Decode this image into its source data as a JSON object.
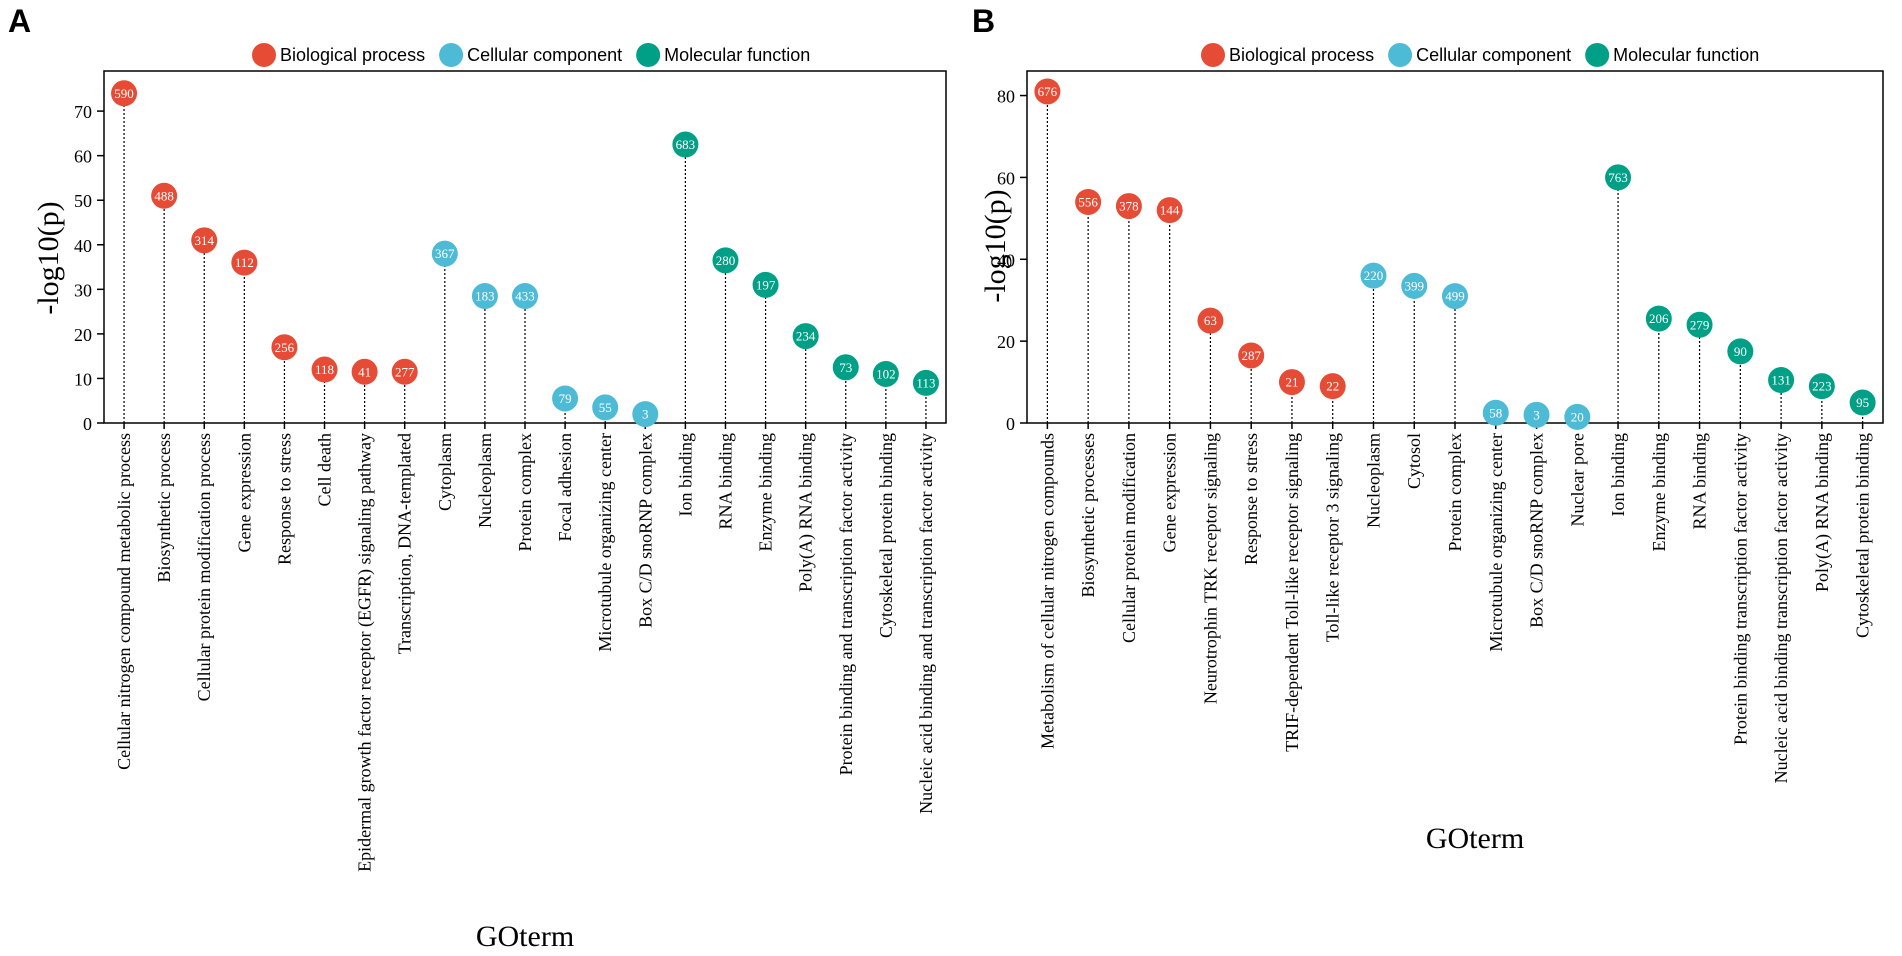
{
  "colors": {
    "Biological process": "#e64b35",
    "Cellular component": "#4dbbd5",
    "Molecular function": "#00a087"
  },
  "chart_data": [
    {
      "type": "scatter",
      "panel": "A",
      "xlabel": "GOterm",
      "ylabel": "-log10(p)",
      "ylim": [
        0,
        79
      ],
      "yticks": [
        0,
        10,
        20,
        30,
        40,
        50,
        60,
        70
      ],
      "legend": [
        "Biological process",
        "Cellular component",
        "Molecular function"
      ],
      "points": [
        {
          "term": "Cellular nitrogen compound metabolic process",
          "category": "Biological process",
          "value": 74,
          "count": "590"
        },
        {
          "term": "Biosynthetic process",
          "category": "Biological process",
          "value": 51,
          "count": "488"
        },
        {
          "term": "Cellular protein modification process",
          "category": "Biological process",
          "value": 41,
          "count": "314"
        },
        {
          "term": "Gene expression",
          "category": "Biological process",
          "value": 36,
          "count": "112"
        },
        {
          "term": "Response to stress",
          "category": "Biological process",
          "value": 17,
          "count": "256"
        },
        {
          "term": "Cell death",
          "category": "Biological process",
          "value": 12,
          "count": "118"
        },
        {
          "term": "Epidermal growth factor receptor (EGFR) signaling pathway",
          "category": "Biological process",
          "value": 11.5,
          "count": "41"
        },
        {
          "term": "Transcription, DNA-templated",
          "category": "Biological process",
          "value": 11.5,
          "count": "277"
        },
        {
          "term": "Cytoplasm",
          "category": "Cellular component",
          "value": 38,
          "count": "367"
        },
        {
          "term": "Nucleoplasm",
          "category": "Cellular component",
          "value": 28.5,
          "count": "183"
        },
        {
          "term": "Protein complex",
          "category": "Cellular component",
          "value": 28.5,
          "count": "433"
        },
        {
          "term": "Focal adhesion",
          "category": "Cellular component",
          "value": 5.5,
          "count": "79"
        },
        {
          "term": "Microtubule organizing center",
          "category": "Cellular component",
          "value": 3.5,
          "count": "55"
        },
        {
          "term": "Box C/D snoRNP complex",
          "category": "Cellular component",
          "value": 2,
          "count": "3"
        },
        {
          "term": "Ion binding",
          "category": "Molecular function",
          "value": 62.5,
          "count": "683"
        },
        {
          "term": "RNA binding",
          "category": "Molecular function",
          "value": 36.5,
          "count": "280"
        },
        {
          "term": "Enzyme binding",
          "category": "Molecular function",
          "value": 31,
          "count": "197"
        },
        {
          "term": "Poly(A) RNA binding",
          "category": "Molecular function",
          "value": 19.5,
          "count": "234"
        },
        {
          "term": "Protein binding and transcription factor activity",
          "category": "Molecular function",
          "value": 12.5,
          "count": "73"
        },
        {
          "term": "Cytoskeletal protein binding",
          "category": "Molecular function",
          "value": 11,
          "count": "102"
        },
        {
          "term": "Nucleic acid binding and transcription factor activity",
          "category": "Molecular function",
          "value": 9,
          "count": "113"
        }
      ]
    },
    {
      "type": "scatter",
      "panel": "B",
      "xlabel": "GOterm",
      "ylabel": "-log10(p)",
      "ylim": [
        0,
        86
      ],
      "yticks": [
        0,
        20,
        40,
        60,
        80
      ],
      "legend": [
        "Biological process",
        "Cellular component",
        "Molecular function"
      ],
      "points": [
        {
          "term": "Metabolism of cellular nitrogen compounds",
          "category": "Biological process",
          "value": 81,
          "count": "676"
        },
        {
          "term": "Biosynthetic processes",
          "category": "Biological process",
          "value": 54,
          "count": "556"
        },
        {
          "term": "Cellular protein modification",
          "category": "Biological process",
          "value": 53,
          "count": "378"
        },
        {
          "term": "Gene expression",
          "category": "Biological process",
          "value": 52,
          "count": "144"
        },
        {
          "term": "Neurotrophin TRK receptor signaling",
          "category": "Biological process",
          "value": 25,
          "count": "63"
        },
        {
          "term": "Response to stress",
          "category": "Biological process",
          "value": 16.5,
          "count": "287"
        },
        {
          "term": "TRIF-dependent Toll-like receptor signaling",
          "category": "Biological process",
          "value": 10,
          "count": "21"
        },
        {
          "term": "Toll-like receptor 3 signaling",
          "category": "Biological process",
          "value": 9,
          "count": "22"
        },
        {
          "term": "Nucleoplasm",
          "category": "Cellular component",
          "value": 36,
          "count": "220"
        },
        {
          "term": "Cytosol",
          "category": "Cellular component",
          "value": 33.5,
          "count": "399"
        },
        {
          "term": "Protein complex",
          "category": "Cellular component",
          "value": 31,
          "count": "499"
        },
        {
          "term": "Microtubule organizing center",
          "category": "Cellular component",
          "value": 2.5,
          "count": "58"
        },
        {
          "term": "Box C/D snoRNP complex",
          "category": "Cellular component",
          "value": 2,
          "count": "3"
        },
        {
          "term": "Nuclear pore",
          "category": "Cellular component",
          "value": 1.5,
          "count": "20"
        },
        {
          "term": "Ion binding",
          "category": "Molecular function",
          "value": 60,
          "count": "763"
        },
        {
          "term": "Enzyme binding",
          "category": "Molecular function",
          "value": 25.5,
          "count": "206"
        },
        {
          "term": "RNA binding",
          "category": "Molecular function",
          "value": 24,
          "count": "279"
        },
        {
          "term": "Protein binding transcription factor activity",
          "category": "Molecular function",
          "value": 17.5,
          "count": "90"
        },
        {
          "term": "Nucleic acid binding transcription factor activity",
          "category": "Molecular function",
          "value": 10.5,
          "count": "131"
        },
        {
          "term": "Poly(A) RNA binding",
          "category": "Molecular function",
          "value": 9,
          "count": "223"
        },
        {
          "term": "Cytoskeletal protein binding",
          "category": "Molecular function",
          "value": 5,
          "count": "95"
        }
      ]
    }
  ]
}
